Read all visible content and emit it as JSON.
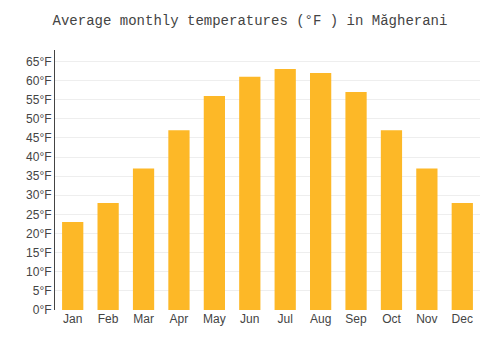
{
  "chart_data": {
    "type": "bar",
    "title": "Average monthly temperatures (°F ) in Măgherani",
    "categories": [
      "Jan",
      "Feb",
      "Mar",
      "Apr",
      "May",
      "Jun",
      "Jul",
      "Aug",
      "Sep",
      "Oct",
      "Nov",
      "Dec"
    ],
    "values": [
      23,
      28,
      37,
      47,
      56,
      61,
      63,
      62,
      57,
      47,
      37,
      28
    ],
    "color": "#FDB827",
    "ylim": [
      0,
      68
    ],
    "yticks": [
      {
        "value": 0,
        "label": "0°F"
      },
      {
        "value": 5,
        "label": "5°F"
      },
      {
        "value": 10,
        "label": "10°F"
      },
      {
        "value": 15,
        "label": "15°F"
      },
      {
        "value": 20,
        "label": "20°F"
      },
      {
        "value": 25,
        "label": "25°F"
      },
      {
        "value": 30,
        "label": "30°F"
      },
      {
        "value": 35,
        "label": "35°F"
      },
      {
        "value": 40,
        "label": "40°F"
      },
      {
        "value": 45,
        "label": "45°F"
      },
      {
        "value": 50,
        "label": "50°F"
      },
      {
        "value": 55,
        "label": "55°F"
      },
      {
        "value": 60,
        "label": "60°F"
      },
      {
        "value": 65,
        "label": "65°F"
      }
    ],
    "grid": true
  }
}
